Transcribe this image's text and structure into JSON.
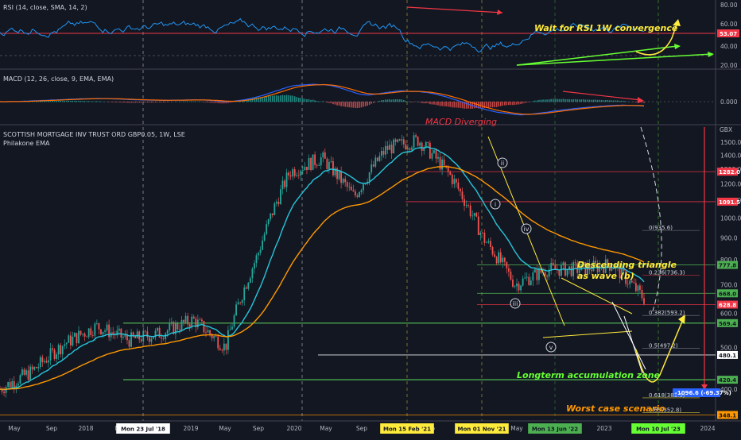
{
  "colors": {
    "bg": "#131722",
    "up": "#26a69a",
    "down": "#ef5350",
    "grid": "#2a2e39",
    "rsi": "#2196f3",
    "macd": "#2962ff",
    "signal": "#ff6d00",
    "ema_fast": "#26c6da",
    "ema_slow": "#ff9800",
    "accent_red": "#f23645",
    "accent_green": "#66ff33",
    "accent_yellow": "#ffeb3b"
  },
  "rsi_panel": {
    "title": "RSI (14, close, SMA, 14, 2)",
    "ticks": [
      "80.00",
      "60.00",
      "40.00",
      "20.00"
    ],
    "current_tag": "53.07",
    "annotation": "Wait for RSI 1W convergence"
  },
  "macd_panel": {
    "title": "MACD (12, 26, close, 9, EMA, EMA)",
    "zero_tick": "0.000",
    "annotation": "MACD Diverging"
  },
  "price_panel": {
    "title": "SCOTTISH MORTGAGE INV TRUST ORD GBP0.05, 1W, LSE",
    "subtitle": "Philakone EMA",
    "currency": "GBX",
    "ticks": [
      "1500.0",
      "1400.0",
      "1300.0",
      "1200.0",
      "1100.0",
      "1000.0",
      "900.0",
      "800.0",
      "700.0",
      "600.0",
      "500.0",
      "400.0"
    ],
    "tags": [
      {
        "label": "1282.0",
        "bg": "#f23645"
      },
      {
        "label": "1091.5",
        "bg": "#f23645"
      },
      {
        "label": "777.8",
        "bg": "#4caf50"
      },
      {
        "label": "668.0",
        "bg": "#4caf50"
      },
      {
        "label": "628.8",
        "bg": "#f23645"
      },
      {
        "label": "569.4",
        "bg": "#4caf50"
      },
      {
        "label": "480.1",
        "bg": "#ffffff"
      },
      {
        "label": "420.4",
        "bg": "#4caf50"
      },
      {
        "label": "348.1",
        "bg": "#ff9800"
      }
    ],
    "measure_label": "-1096.6 (-69.37%)",
    "fib_labels": [
      "0(935.6)",
      "0.236(736.3)",
      "0.382(593.2)",
      "0.5(497.2)",
      "0.618(381.5)",
      "0.65(352.8)"
    ],
    "annotations": {
      "triangle_1": "Descending triangle",
      "triangle_2": "as wave (b)",
      "accumulation": "Longterm accumulation zone",
      "worst_case": "Worst case scenario"
    },
    "waves": [
      "ii",
      "i",
      "iv",
      "iii",
      "v"
    ]
  },
  "time_axis": {
    "labels": [
      "May",
      "Sep",
      "2018",
      "Ma",
      "2019",
      "May",
      "Sep",
      "2020",
      "May",
      "Sep",
      "2021",
      "Sep",
      "2022",
      "May",
      "Sep",
      "2023",
      "Ma",
      "2024"
    ],
    "highlights": [
      {
        "label": "Mon 23 Jul '18",
        "bg": "#ffffff",
        "fg": "#131722"
      },
      {
        "label": "Mon 15 Feb '21",
        "bg": "#ffeb3b",
        "fg": "#131722"
      },
      {
        "label": "Mon 01 Nov '21",
        "bg": "#ffeb3b",
        "fg": "#131722"
      },
      {
        "label": "Mon 13 Jun '22",
        "bg": "#4caf50",
        "fg": "#131722"
      },
      {
        "label": "Mon 10 Jul '23",
        "bg": "#66ff33",
        "fg": "#131722"
      }
    ]
  },
  "chart_data": {
    "type": "line",
    "title": "SCOTTISH MORTGAGE INV TRUST ORD GBP0.05, 1W, LSE",
    "ylabel": "GBX",
    "ylim": [
      340,
      1560
    ],
    "x": [
      "2017-05",
      "2017-09",
      "2018-01",
      "2018-07",
      "2019-01",
      "2019-07",
      "2020-01",
      "2020-03",
      "2020-07",
      "2021-01",
      "2021-02",
      "2021-05",
      "2021-09",
      "2021-11",
      "2022-01",
      "2022-03",
      "2022-06",
      "2022-09",
      "2022-12",
      "2023-03",
      "2023-06"
    ],
    "series": [
      {
        "name": "SCOTTISH MORTGAGE INV TRUST ORD GBP0.05",
        "values": [
          400,
          440,
          510,
          560,
          520,
          540,
          580,
          500,
          820,
          1280,
          1380,
          1120,
          1450,
          1520,
          1250,
          900,
          700,
          760,
          760,
          780,
          650
        ]
      }
    ],
    "levels": [
      1282.0,
      1091.5,
      777.8,
      668.0,
      628.8,
      569.4,
      480.1,
      420.4,
      348.1
    ]
  }
}
